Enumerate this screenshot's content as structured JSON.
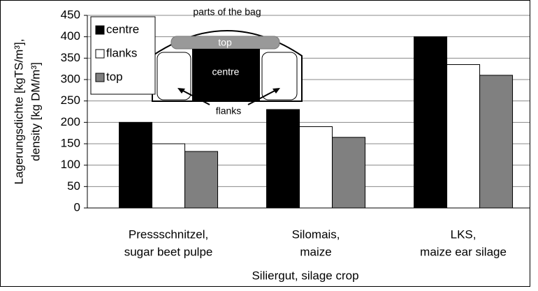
{
  "chart_data": {
    "type": "bar",
    "ylabel": [
      "Lagerungsdichte [kgTS/m³],",
      "density [kg DM/m³]"
    ],
    "xlabel": "Siliergut, silage crop",
    "categories": [
      [
        "Pressschnitzel,",
        "sugar beet pulpe"
      ],
      [
        "Silomais,",
        "maize"
      ],
      [
        "LKS,",
        "maize ear silage"
      ]
    ],
    "series": [
      {
        "name": "centre",
        "color": "#000000",
        "values": [
          200,
          230,
          400
        ]
      },
      {
        "name": "flanks",
        "color": "#ffffff",
        "values": [
          150,
          190,
          335
        ]
      },
      {
        "name": "top",
        "color": "#808080",
        "values": [
          132,
          165,
          310
        ]
      }
    ],
    "ylim": [
      0,
      450
    ],
    "yticks": [
      0,
      50,
      100,
      150,
      200,
      250,
      300,
      350,
      400,
      450
    ],
    "grid": true,
    "legend": "upper left",
    "inset": {
      "title": "parts of the bag",
      "top": "top",
      "centre": "centre",
      "flanks": "flanks"
    }
  }
}
